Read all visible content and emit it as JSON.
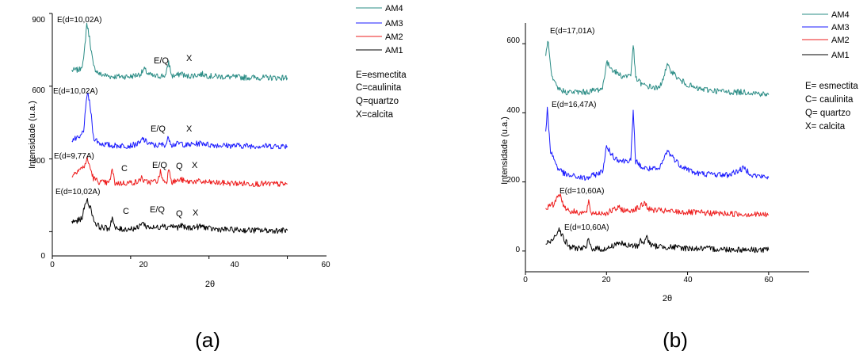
{
  "chart_data": [
    {
      "type": "line",
      "panel_label": "(a)",
      "xlabel": "2θ",
      "ylabel": "Intensidade (u.a.)",
      "xlim": [
        0,
        70
      ],
      "ylim": [
        -100,
        900
      ],
      "x_ticks": [
        "0",
        "20",
        "40",
        "60"
      ],
      "y_ticks": [
        "0",
        "300",
        "600",
        "900"
      ],
      "legend": [
        "AM4",
        "AM3",
        "AM2",
        "AM1"
      ],
      "legend_placement": "top-right outside",
      "key": [
        "E=esmectita",
        "C=caulinita",
        "Q=quartzo",
        "X=calcita"
      ],
      "series": [
        {
          "name": "AM4",
          "color": "#2a8c85",
          "x": [
            5,
            7,
            8,
            8.8,
            9.5,
            10.5,
            12,
            15,
            20,
            22.5,
            23.5,
            24.5,
            26,
            29,
            29.7,
            30.5,
            32,
            33,
            34,
            38.5,
            40,
            45,
            50,
            55,
            60
          ],
          "y": [
            665,
            668,
            705,
            860,
            800,
            680,
            650,
            640,
            640,
            650,
            670,
            650,
            640,
            645,
            700,
            642,
            645,
            655,
            640,
            650,
            642,
            638,
            636,
            635,
            635
          ]
        },
        {
          "name": "AM3",
          "color": "#1a1aff",
          "x": [
            5,
            7,
            8,
            9,
            9.8,
            10.5,
            12,
            15,
            20,
            22.5,
            23,
            24,
            26,
            29,
            29.7,
            30.5,
            33,
            34,
            38.5,
            40,
            45,
            50,
            55,
            60
          ],
          "y": [
            380,
            385,
            420,
            580,
            500,
            390,
            365,
            355,
            355,
            365,
            385,
            370,
            355,
            360,
            390,
            358,
            365,
            356,
            366,
            358,
            355,
            354,
            353,
            353
          ]
        },
        {
          "name": "AM2",
          "color": "#ee1c1c",
          "x": [
            5,
            6.5,
            8,
            8.9,
            9.7,
            10.5,
            12,
            14.5,
            15.3,
            16,
            18,
            22,
            22.8,
            23.5,
            25,
            27,
            27.6,
            28.3,
            29.2,
            29.8,
            30.5,
            32,
            33,
            34,
            36,
            40,
            45,
            50,
            55,
            60
          ],
          "y": [
            230,
            255,
            265,
            300,
            262,
            220,
            205,
            200,
            255,
            200,
            200,
            205,
            225,
            205,
            205,
            210,
            248,
            210,
            205,
            265,
            205,
            210,
            215,
            205,
            208,
            203,
            200,
            198,
            197,
            196
          ]
        },
        {
          "name": "AM1",
          "color": "#000000",
          "x": [
            5,
            6.5,
            7.5,
            8.8,
            9.8,
            10.8,
            12,
            14.5,
            15.3,
            16,
            18,
            22,
            22.8,
            24,
            26,
            27.5,
            28.2,
            29,
            30,
            32,
            33,
            34,
            38.5,
            40,
            45,
            50,
            55,
            60
          ],
          "y": [
            40,
            45,
            55,
            135,
            95,
            40,
            20,
            12,
            60,
            12,
            10,
            15,
            40,
            22,
            15,
            20,
            35,
            15,
            25,
            18,
            25,
            15,
            22,
            12,
            8,
            6,
            5,
            5
          ]
        }
      ],
      "annotations": [
        {
          "text": "E(d=10,02A)",
          "series": "AM4"
        },
        {
          "text": "E/Q",
          "series": "AM4"
        },
        {
          "text": "X",
          "series": "AM4"
        },
        {
          "text": "E(d=10,02A)",
          "series": "AM3"
        },
        {
          "text": "E/Q",
          "series": "AM3"
        },
        {
          "text": "X",
          "series": "AM3"
        },
        {
          "text": "E(d=9,77A)",
          "series": "AM2"
        },
        {
          "text": "C",
          "series": "AM2"
        },
        {
          "text": "E/Q",
          "series": "AM2"
        },
        {
          "text": "Q",
          "series": "AM2"
        },
        {
          "text": "X",
          "series": "AM2"
        },
        {
          "text": "E(d=10,02A)",
          "series": "AM1"
        },
        {
          "text": "C",
          "series": "AM1"
        },
        {
          "text": "E/Q",
          "series": "AM1"
        },
        {
          "text": "Q",
          "series": "AM1"
        },
        {
          "text": "X",
          "series": "AM1"
        }
      ]
    },
    {
      "type": "line",
      "panel_label": "(b)",
      "xlabel": "2θ",
      "ylabel": "Intensidade (u.a.)",
      "xlim": [
        0,
        70
      ],
      "ylim": [
        -60,
        660
      ],
      "x_ticks": [
        "0",
        "20",
        "40",
        "60"
      ],
      "y_ticks": [
        "0",
        "200",
        "400",
        "600"
      ],
      "legend": [
        "AM4",
        "AM3",
        "AM2",
        "AM1"
      ],
      "legend_placement": "top-right outside",
      "key": [
        "E= esmectita",
        "C= caulinita",
        "Q= quartzo",
        "X= calcita"
      ],
      "series": [
        {
          "name": "AM4",
          "color": "#2a8c85",
          "x": [
            5,
            5.5,
            6.5,
            8,
            10,
            15,
            19,
            20,
            22,
            24,
            26,
            26.6,
            27.2,
            29,
            33,
            35,
            38,
            42,
            50,
            55,
            60
          ],
          "y": [
            560,
            615,
            500,
            470,
            460,
            460,
            470,
            545,
            520,
            505,
            510,
            600,
            500,
            480,
            470,
            535,
            495,
            470,
            460,
            460,
            452
          ]
        },
        {
          "name": "AM3",
          "color": "#1a1aff",
          "x": [
            5,
            5.4,
            6.2,
            8,
            10,
            15,
            19,
            20,
            22,
            24,
            26,
            26.6,
            27.2,
            29,
            33,
            35,
            38,
            42,
            50,
            54,
            56,
            60
          ],
          "y": [
            340,
            410,
            290,
            240,
            220,
            210,
            230,
            300,
            270,
            260,
            265,
            400,
            260,
            240,
            235,
            290,
            250,
            225,
            220,
            240,
            220,
            212
          ]
        },
        {
          "name": "AM2",
          "color": "#ee1c1c",
          "x": [
            5,
            7,
            8.3,
            9.5,
            11,
            15,
            15.6,
            16.2,
            20,
            23,
            25,
            28,
            29.5,
            30.5,
            35,
            40,
            50,
            60
          ],
          "y": [
            125,
            135,
            170,
            130,
            115,
            110,
            140,
            110,
            110,
            125,
            115,
            125,
            140,
            120,
            115,
            112,
            108,
            105
          ]
        },
        {
          "name": "AM1",
          "color": "#000000",
          "x": [
            5,
            6.5,
            8.3,
            9.7,
            11,
            15,
            15.6,
            16.2,
            20,
            23,
            25,
            28,
            28.4,
            29.2,
            29.8,
            31,
            35,
            40,
            50,
            60
          ],
          "y": [
            20,
            30,
            65,
            30,
            10,
            8,
            35,
            8,
            5,
            25,
            15,
            15,
            40,
            15,
            45,
            15,
            12,
            8,
            5,
            3
          ]
        }
      ],
      "annotations": [
        {
          "text": "E(d=17,01A)",
          "series": "AM4"
        },
        {
          "text": "E(d=16,47A)",
          "series": "AM3"
        },
        {
          "text": "E(d=10,60A)",
          "series": "AM2"
        },
        {
          "text": "E(d=10,60A)",
          "series": "AM1"
        }
      ]
    }
  ]
}
